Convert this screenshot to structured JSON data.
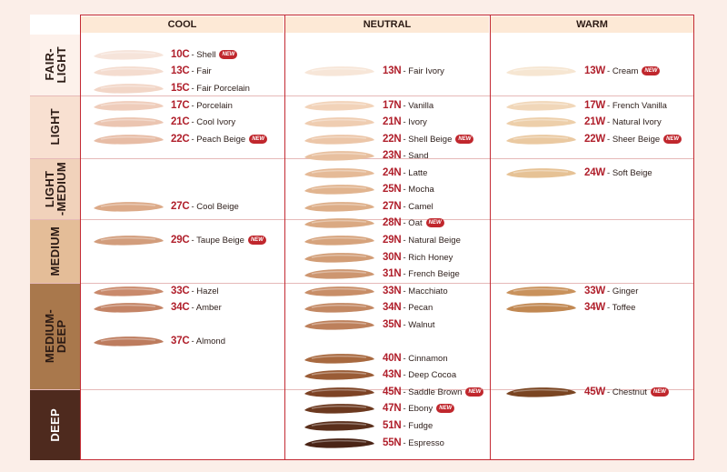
{
  "headers": [
    "COOL",
    "NEUTRAL",
    "WARM"
  ],
  "badge_text": "NEW",
  "bands": [
    {
      "label": "FAIR-\nLIGHT",
      "bg": "#fdf1eb",
      "fg": "#2b1a14"
    },
    {
      "label": "LIGHT",
      "bg": "#f8e0d1",
      "fg": "#2b1a14"
    },
    {
      "label": "LIGHT\n-MEDIUM",
      "bg": "#f1d2bb",
      "fg": "#2b1a14"
    },
    {
      "label": "MEDIUM",
      "bg": "#e4bd98",
      "fg": "#2b1a14"
    },
    {
      "label": "MEDIUM-\nDEEP",
      "bg": "#a9784c",
      "fg": "#2b1a14"
    },
    {
      "label": "DEEP",
      "bg": "#4e2a1e",
      "fg": "#ffffff"
    }
  ],
  "columns": [
    [
      {
        "code": "10C",
        "name": "Shell",
        "new": true,
        "color": "#f6e4da"
      },
      {
        "code": "13C",
        "name": "Fair",
        "new": false,
        "color": "#f4dccf"
      },
      {
        "code": "15C",
        "name": "Fair Porcelain",
        "new": false,
        "color": "#f2d6c7"
      },
      {
        "code": "17C",
        "name": "Porcelain",
        "new": false,
        "color": "#efcdbb"
      },
      {
        "code": "21C",
        "name": "Cool Ivory",
        "new": false,
        "color": "#ebc5b1"
      },
      {
        "code": "22C",
        "name": "Peach Beige",
        "new": true,
        "color": "#e7bca5"
      },
      {
        "code": "27C",
        "name": "Cool Beige",
        "new": false,
        "color": "#dcaa88"
      },
      {
        "code": "29C",
        "name": "Taupe Beige",
        "new": true,
        "color": "#d29d7c"
      },
      {
        "code": "33C",
        "name": "Hazel",
        "new": false,
        "color": "#c98a6c"
      },
      {
        "code": "34C",
        "name": "Amber",
        "new": false,
        "color": "#c48466"
      },
      {
        "code": "37C",
        "name": "Almond",
        "new": false,
        "color": "#bd7c5e"
      }
    ],
    [
      {
        "code": "13N",
        "name": "Fair Ivory",
        "new": false,
        "color": "#f7e6d8"
      },
      {
        "code": "17N",
        "name": "Vanilla",
        "new": false,
        "color": "#f2d3b9"
      },
      {
        "code": "21N",
        "name": "Ivory",
        "new": false,
        "color": "#efcdb1"
      },
      {
        "code": "22N",
        "name": "Shell Beige",
        "new": true,
        "color": "#ecc6a8"
      },
      {
        "code": "23N",
        "name": "Sand",
        "new": false,
        "color": "#e8c09f"
      },
      {
        "code": "24N",
        "name": "Latte",
        "new": false,
        "color": "#e5ba97"
      },
      {
        "code": "25N",
        "name": "Mocha",
        "new": false,
        "color": "#e1b48f"
      },
      {
        "code": "27N",
        "name": "Camel",
        "new": false,
        "color": "#ddae88"
      },
      {
        "code": "28N",
        "name": "Oat",
        "new": true,
        "color": "#daa982"
      },
      {
        "code": "29N",
        "name": "Natural Beige",
        "new": false,
        "color": "#d6a37c"
      },
      {
        "code": "30N",
        "name": "Rich Honey",
        "new": false,
        "color": "#d29d76"
      },
      {
        "code": "31N",
        "name": "French Beige",
        "new": false,
        "color": "#cd9670"
      },
      {
        "code": "33N",
        "name": "Macchiato",
        "new": false,
        "color": "#c88e68"
      },
      {
        "code": "34N",
        "name": "Pecan",
        "new": false,
        "color": "#c38863"
      },
      {
        "code": "35N",
        "name": "Walnut",
        "new": false,
        "color": "#bd805b"
      },
      {
        "code": "40N",
        "name": "Cinnamon",
        "new": false,
        "color": "#a8693f"
      },
      {
        "code": "43N",
        "name": "Deep Cocoa",
        "new": false,
        "color": "#9a5c36"
      },
      {
        "code": "45N",
        "name": "Saddle Brown",
        "new": true,
        "color": "#7d4325"
      },
      {
        "code": "47N",
        "name": "Ebony",
        "new": true,
        "color": "#6c391f"
      },
      {
        "code": "51N",
        "name": "Fudge",
        "new": false,
        "color": "#5a2f1b"
      },
      {
        "code": "55N",
        "name": "Espresso",
        "new": false,
        "color": "#4a2416"
      }
    ],
    [
      {
        "code": "13W",
        "name": "Cream",
        "new": true,
        "color": "#f6e6d2"
      },
      {
        "code": "17W",
        "name": "French Vanilla",
        "new": false,
        "color": "#f1d7b9"
      },
      {
        "code": "21W",
        "name": "Natural Ivory",
        "new": false,
        "color": "#edcfaa"
      },
      {
        "code": "22W",
        "name": "Sheer Beige",
        "new": true,
        "color": "#eac9a1"
      },
      {
        "code": "24W",
        "name": "Soft Beige",
        "new": false,
        "color": "#e6c295"
      },
      {
        "code": "33W",
        "name": "Ginger",
        "new": false,
        "color": "#c9925c"
      },
      {
        "code": "34W",
        "name": "Toffee",
        "new": false,
        "color": "#c18852"
      },
      {
        "code": "45W",
        "name": "Chestnut",
        "new": true,
        "color": "#7a4522"
      }
    ]
  ]
}
